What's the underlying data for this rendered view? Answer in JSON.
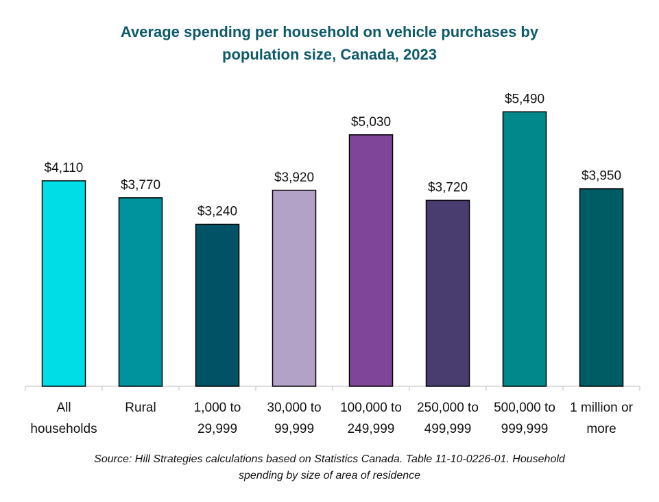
{
  "chart_data": {
    "type": "bar",
    "title_lines": [
      "Average spending per household on vehicle purchases by",
      "population size, Canada, 2023"
    ],
    "categories": [
      [
        "All",
        "households"
      ],
      [
        "Rural"
      ],
      [
        "1,000 to",
        "29,999"
      ],
      [
        "30,000 to",
        "99,999"
      ],
      [
        "100,000 to",
        "249,999"
      ],
      [
        "250,000 to",
        "499,999"
      ],
      [
        "500,000 to",
        "999,999"
      ],
      [
        "1 million or",
        "more"
      ]
    ],
    "values": [
      4110,
      3770,
      3240,
      3920,
      5030,
      3720,
      5490,
      3950
    ],
    "value_labels": [
      "$4,110",
      "$3,770",
      "$3,240",
      "$3,920",
      "$5,030",
      "$3,720",
      "$5,490",
      "$3,950"
    ],
    "bar_colors": [
      "#00dde6",
      "#00939e",
      "#005264",
      "#b2a2c8",
      "#7f4599",
      "#483d6e",
      "#00888a",
      "#005c64"
    ],
    "ylim": [
      0,
      6000
    ],
    "grid": false,
    "source_lines": [
      "Source: Hill Strategies calculations based on Statistics Canada. Table 11-10-0226-01. Household",
      "spending by size of area of residence"
    ]
  }
}
